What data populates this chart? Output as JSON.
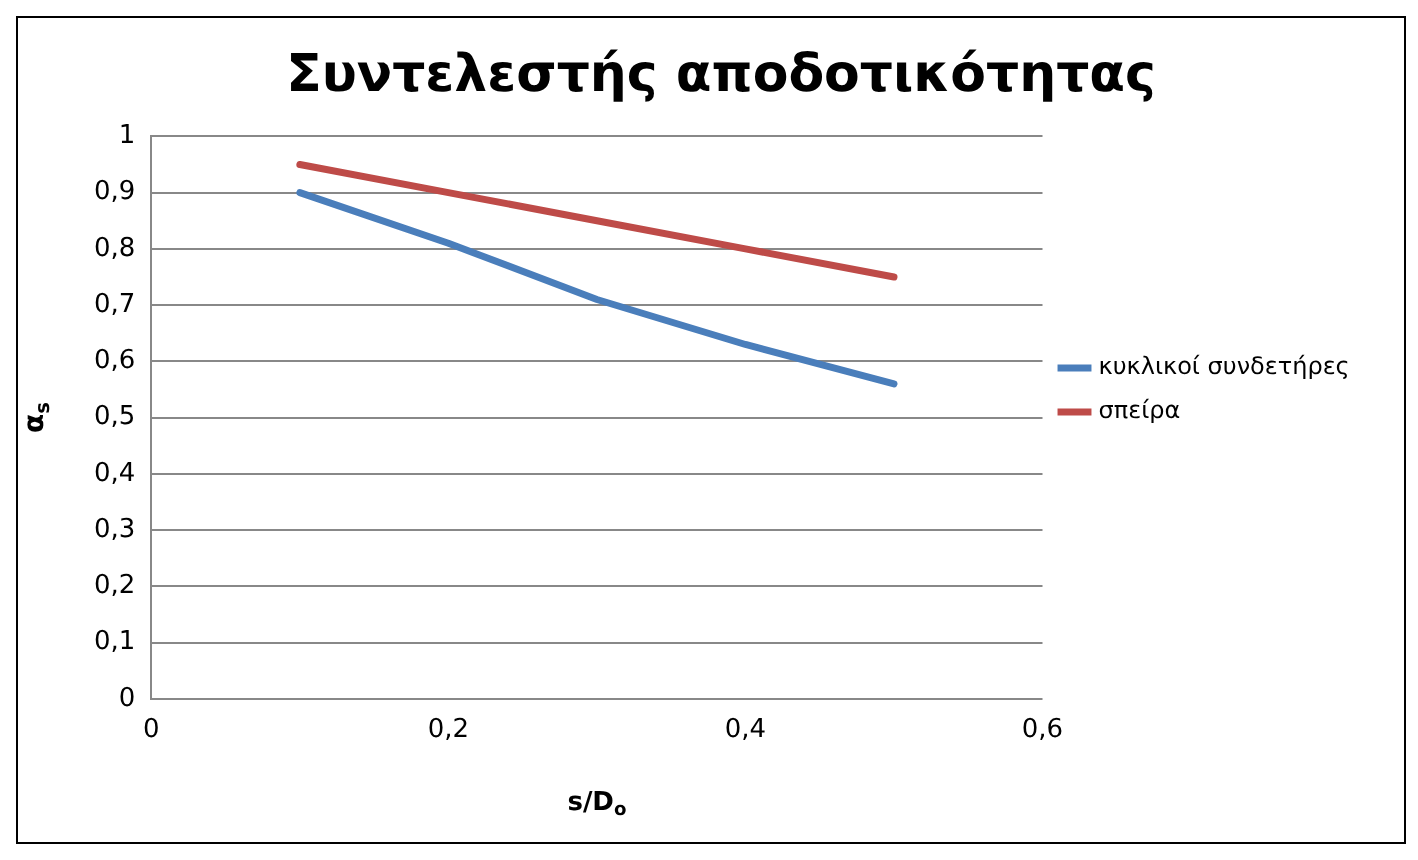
{
  "chart_data": {
    "type": "line",
    "title": "Συντελεστής αποδοτικότητας",
    "xlabel": "s/D$_{o}$",
    "ylabel": "α$_{s}$",
    "x": [
      0.1,
      0.2,
      0.3,
      0.4,
      0.5
    ],
    "series": [
      {
        "name": "κυκλικοί συνδετήρες",
        "color": "#4a7ebb",
        "values": [
          0.9,
          0.81,
          0.71,
          0.63,
          0.56
        ]
      },
      {
        "name": "σπείρα",
        "color": "#be4b48",
        "values": [
          0.95,
          0.9,
          0.85,
          0.8,
          0.75
        ]
      }
    ],
    "xlim": [
      0,
      0.6
    ],
    "xticks": [
      0,
      {
        "value": 0.2,
        "label": "0,2"
      },
      {
        "value": 0.4,
        "label": "0,4"
      },
      {
        "value": 0.6,
        "label": "0,6"
      }
    ],
    "ylim": [
      0,
      1
    ],
    "yticks": [
      0,
      {
        "value": 0.1,
        "label": "0,1"
      },
      {
        "value": 0.2,
        "label": "0,2"
      },
      {
        "value": 0.3,
        "label": "0,3"
      },
      {
        "value": 0.4,
        "label": "0,4"
      },
      {
        "value": 0.5,
        "label": "0,5"
      },
      {
        "value": 0.6,
        "label": "0,6"
      },
      {
        "value": 0.7,
        "label": "0,7"
      },
      {
        "value": 0.8,
        "label": "0,8"
      },
      {
        "value": 0.9,
        "label": "0,9"
      },
      1
    ],
    "grid": "y",
    "legend": "right",
    "marker": "none",
    "line_style": "solid"
  }
}
